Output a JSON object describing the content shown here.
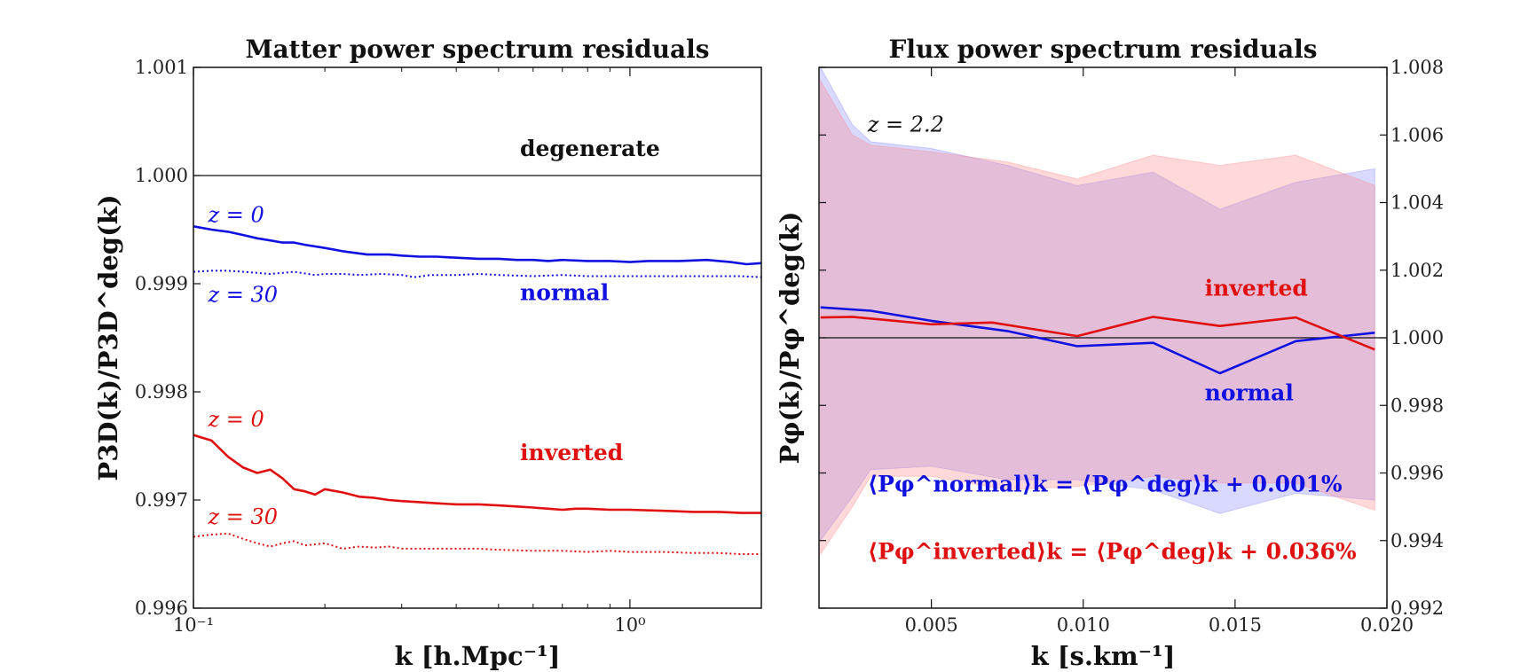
{
  "chart_data": [
    {
      "type": "line",
      "title": "Matter power spectrum residuals",
      "xlabel": "k [h.Mpc⁻¹]",
      "ylabel": "P3D(k)/P3D^deg(k)",
      "xscale": "log",
      "xlim": [
        0.1,
        2.0
      ],
      "ylim": [
        0.996,
        1.001
      ],
      "xticks": [
        {
          "v": 0.1,
          "label": "10⁻¹"
        },
        {
          "v": 1.0,
          "label": "10⁰"
        }
      ],
      "yticks": [
        {
          "v": 0.996,
          "label": "0.996"
        },
        {
          "v": 0.997,
          "label": "0.997"
        },
        {
          "v": 0.998,
          "label": "0.998"
        },
        {
          "v": 0.999,
          "label": "0.999"
        },
        {
          "v": 1.0,
          "label": "1.000"
        },
        {
          "v": 1.001,
          "label": "1.001"
        }
      ],
      "reference": {
        "value": 1.0,
        "label": "degenerate"
      },
      "series": [
        {
          "name": "normal z = 0",
          "color": "#1010e0",
          "style": "solid",
          "x": [
            0.1,
            0.11,
            0.12,
            0.13,
            0.14,
            0.15,
            0.16,
            0.17,
            0.18,
            0.2,
            0.22,
            0.25,
            0.28,
            0.3,
            0.33,
            0.36,
            0.4,
            0.45,
            0.5,
            0.55,
            0.6,
            0.65,
            0.7,
            0.8,
            0.9,
            1.0,
            1.1,
            1.2,
            1.3,
            1.5,
            1.7,
            1.85,
            2.0
          ],
          "y": [
            0.99953,
            0.9995,
            0.99948,
            0.99945,
            0.99942,
            0.9994,
            0.99938,
            0.99938,
            0.99936,
            0.99933,
            0.9993,
            0.99927,
            0.99927,
            0.99926,
            0.99925,
            0.99925,
            0.99924,
            0.99923,
            0.99923,
            0.99922,
            0.99922,
            0.99921,
            0.99922,
            0.99921,
            0.99921,
            0.9992,
            0.99921,
            0.99921,
            0.99921,
            0.99922,
            0.9992,
            0.99918,
            0.99919
          ]
        },
        {
          "name": "normal z = 30",
          "color": "#1010e0",
          "style": "dotted",
          "x": [
            0.1,
            0.11,
            0.12,
            0.13,
            0.15,
            0.17,
            0.19,
            0.2,
            0.22,
            0.24,
            0.27,
            0.3,
            0.32,
            0.35,
            0.4,
            0.45,
            0.5,
            0.6,
            0.7,
            0.8,
            0.9,
            1.0,
            1.2,
            1.4,
            1.6,
            1.8,
            2.0
          ],
          "y": [
            0.99911,
            0.99912,
            0.99912,
            0.99911,
            0.99909,
            0.99911,
            0.99908,
            0.99909,
            0.99909,
            0.99908,
            0.99909,
            0.99908,
            0.99906,
            0.99908,
            0.99908,
            0.99909,
            0.99908,
            0.99907,
            0.99908,
            0.99907,
            0.99907,
            0.99907,
            0.99907,
            0.99907,
            0.99907,
            0.99907,
            0.99906
          ]
        },
        {
          "name": "inverted z = 0",
          "color": "#e01010",
          "style": "solid",
          "x": [
            0.1,
            0.11,
            0.12,
            0.13,
            0.14,
            0.15,
            0.16,
            0.17,
            0.18,
            0.19,
            0.2,
            0.22,
            0.24,
            0.26,
            0.28,
            0.3,
            0.33,
            0.36,
            0.4,
            0.45,
            0.5,
            0.55,
            0.6,
            0.65,
            0.7,
            0.75,
            0.8,
            0.9,
            1.0,
            1.2,
            1.4,
            1.6,
            1.8,
            2.0
          ],
          "y": [
            0.9976,
            0.99755,
            0.9974,
            0.9973,
            0.99725,
            0.99728,
            0.9972,
            0.9971,
            0.99708,
            0.99705,
            0.9971,
            0.99707,
            0.99703,
            0.99702,
            0.997,
            0.99699,
            0.99698,
            0.99697,
            0.99696,
            0.99696,
            0.99695,
            0.99694,
            0.99693,
            0.99692,
            0.99691,
            0.99692,
            0.99692,
            0.99691,
            0.99691,
            0.9969,
            0.99689,
            0.99689,
            0.99688,
            0.99688
          ]
        },
        {
          "name": "inverted z = 30",
          "color": "#e01010",
          "style": "dotted",
          "x": [
            0.1,
            0.11,
            0.12,
            0.13,
            0.14,
            0.15,
            0.16,
            0.17,
            0.18,
            0.2,
            0.22,
            0.24,
            0.26,
            0.28,
            0.3,
            0.35,
            0.4,
            0.45,
            0.5,
            0.6,
            0.7,
            0.8,
            0.9,
            1.0,
            1.2,
            1.4,
            1.6,
            1.8,
            2.0
          ],
          "y": [
            0.99666,
            0.99668,
            0.99669,
            0.99664,
            0.9966,
            0.99657,
            0.9966,
            0.99662,
            0.99658,
            0.9966,
            0.99655,
            0.99657,
            0.99656,
            0.99657,
            0.99655,
            0.99655,
            0.99655,
            0.99655,
            0.99654,
            0.99653,
            0.99653,
            0.99652,
            0.99653,
            0.99652,
            0.99652,
            0.99651,
            0.99651,
            0.9965,
            0.9965
          ]
        }
      ],
      "annotations": [
        {
          "text": "degenerate",
          "color": "#111111",
          "bold": true,
          "x": 0.56,
          "y": 1.00018
        },
        {
          "text": "z = 0",
          "color": "#1010e0",
          "bold": false,
          "x": 0.108,
          "y": 0.99957
        },
        {
          "text": "z = 30",
          "color": "#1010e0",
          "bold": false,
          "x": 0.108,
          "y": 0.99883
        },
        {
          "text": "normal",
          "color": "#1010e0",
          "bold": true,
          "x": 0.56,
          "y": 0.99885
        },
        {
          "text": "z = 0",
          "color": "#e01010",
          "bold": false,
          "x": 0.108,
          "y": 0.99768
        },
        {
          "text": "inverted",
          "color": "#e01010",
          "bold": true,
          "x": 0.56,
          "y": 0.99737
        },
        {
          "text": "z = 30",
          "color": "#e01010",
          "bold": false,
          "x": 0.108,
          "y": 0.99678
        }
      ]
    },
    {
      "type": "line",
      "title": "Flux power spectrum residuals",
      "xlabel": "k [s.km⁻¹]",
      "ylabel": "Pφ(k)/Pφ^deg(k)",
      "xlim": [
        0.0013,
        0.02
      ],
      "ylim": [
        0.992,
        1.008
      ],
      "xticks": [
        {
          "v": 0.005,
          "label": "0.005"
        },
        {
          "v": 0.01,
          "label": "0.010"
        },
        {
          "v": 0.015,
          "label": "0.015"
        },
        {
          "v": 0.02,
          "label": "0.020"
        }
      ],
      "yticks": [
        {
          "v": 0.992,
          "label": "0.992"
        },
        {
          "v": 0.994,
          "label": "0.994"
        },
        {
          "v": 0.996,
          "label": "0.996"
        },
        {
          "v": 0.998,
          "label": "0.998"
        },
        {
          "v": 1.0,
          "label": "1.000"
        },
        {
          "v": 1.002,
          "label": "1.002"
        },
        {
          "v": 1.004,
          "label": "1.004"
        },
        {
          "v": 1.006,
          "label": "1.006"
        },
        {
          "v": 1.008,
          "label": "1.008"
        }
      ],
      "reference": {
        "value": 1.0
      },
      "bands": [
        {
          "name": "normal band",
          "color": "#8080ff",
          "opacity": 0.3,
          "x": [
            0.00135,
            0.0024,
            0.003,
            0.005,
            0.0075,
            0.0098,
            0.0123,
            0.0145,
            0.017,
            0.0196
          ],
          "upper": [
            1.008,
            1.0063,
            1.0058,
            1.0056,
            1.0051,
            1.0045,
            1.0049,
            1.0038,
            1.0046,
            1.005
          ],
          "lower": [
            0.994,
            0.9953,
            0.9961,
            0.9962,
            0.9958,
            0.9958,
            0.9955,
            0.9948,
            0.9954,
            0.9952
          ]
        },
        {
          "name": "inverted band",
          "color": "#ff8080",
          "opacity": 0.3,
          "x": [
            0.00135,
            0.0024,
            0.003,
            0.005,
            0.0075,
            0.0098,
            0.0123,
            0.0145,
            0.017,
            0.0196
          ],
          "upper": [
            1.0076,
            1.006,
            1.0057,
            1.0055,
            1.0052,
            1.0047,
            1.0054,
            1.0051,
            1.0054,
            1.0045
          ],
          "lower": [
            0.9936,
            0.995,
            0.9959,
            0.9959,
            0.9955,
            0.9956,
            0.9959,
            0.9957,
            0.9957,
            0.9949
          ]
        }
      ],
      "series": [
        {
          "name": "normal",
          "color": "#1010e0",
          "style": "solid",
          "x": [
            0.00135,
            0.003,
            0.005,
            0.0075,
            0.0098,
            0.0123,
            0.0145,
            0.017,
            0.0196
          ],
          "y": [
            1.0009,
            1.0008,
            1.0005,
            1.0002,
            0.99975,
            0.99985,
            0.99895,
            0.9999,
            1.00015
          ]
        },
        {
          "name": "inverted",
          "color": "#e01010",
          "style": "solid",
          "x": [
            0.00135,
            0.0024,
            0.005,
            0.007,
            0.0098,
            0.0123,
            0.0145,
            0.017,
            0.0196
          ],
          "y": [
            1.0006,
            1.00062,
            1.0004,
            1.00045,
            1.00005,
            1.00062,
            1.00035,
            1.0006,
            0.99965
          ]
        }
      ],
      "annotations": [
        {
          "text": "z = 2.2",
          "color": "#111111",
          "bold": false,
          "x": 0.0029,
          "y": 1.0061
        },
        {
          "text": "inverted",
          "color": "#e01010",
          "bold": true,
          "x": 0.014,
          "y": 1.00125
        },
        {
          "text": "normal",
          "color": "#1010e0",
          "bold": true,
          "x": 0.014,
          "y": 0.99815
        },
        {
          "text": "⟨Pφ^normal⟩k = ⟨Pφ^deg⟩k + 0.001%",
          "color": "#1010e0",
          "bold": true,
          "x": 0.0029,
          "y": 0.99545
        },
        {
          "text": "⟨Pφ^inverted⟩k = ⟨Pφ^deg⟩k + 0.036%",
          "color": "#e01010",
          "bold": true,
          "x": 0.0029,
          "y": 0.99345
        }
      ]
    }
  ]
}
